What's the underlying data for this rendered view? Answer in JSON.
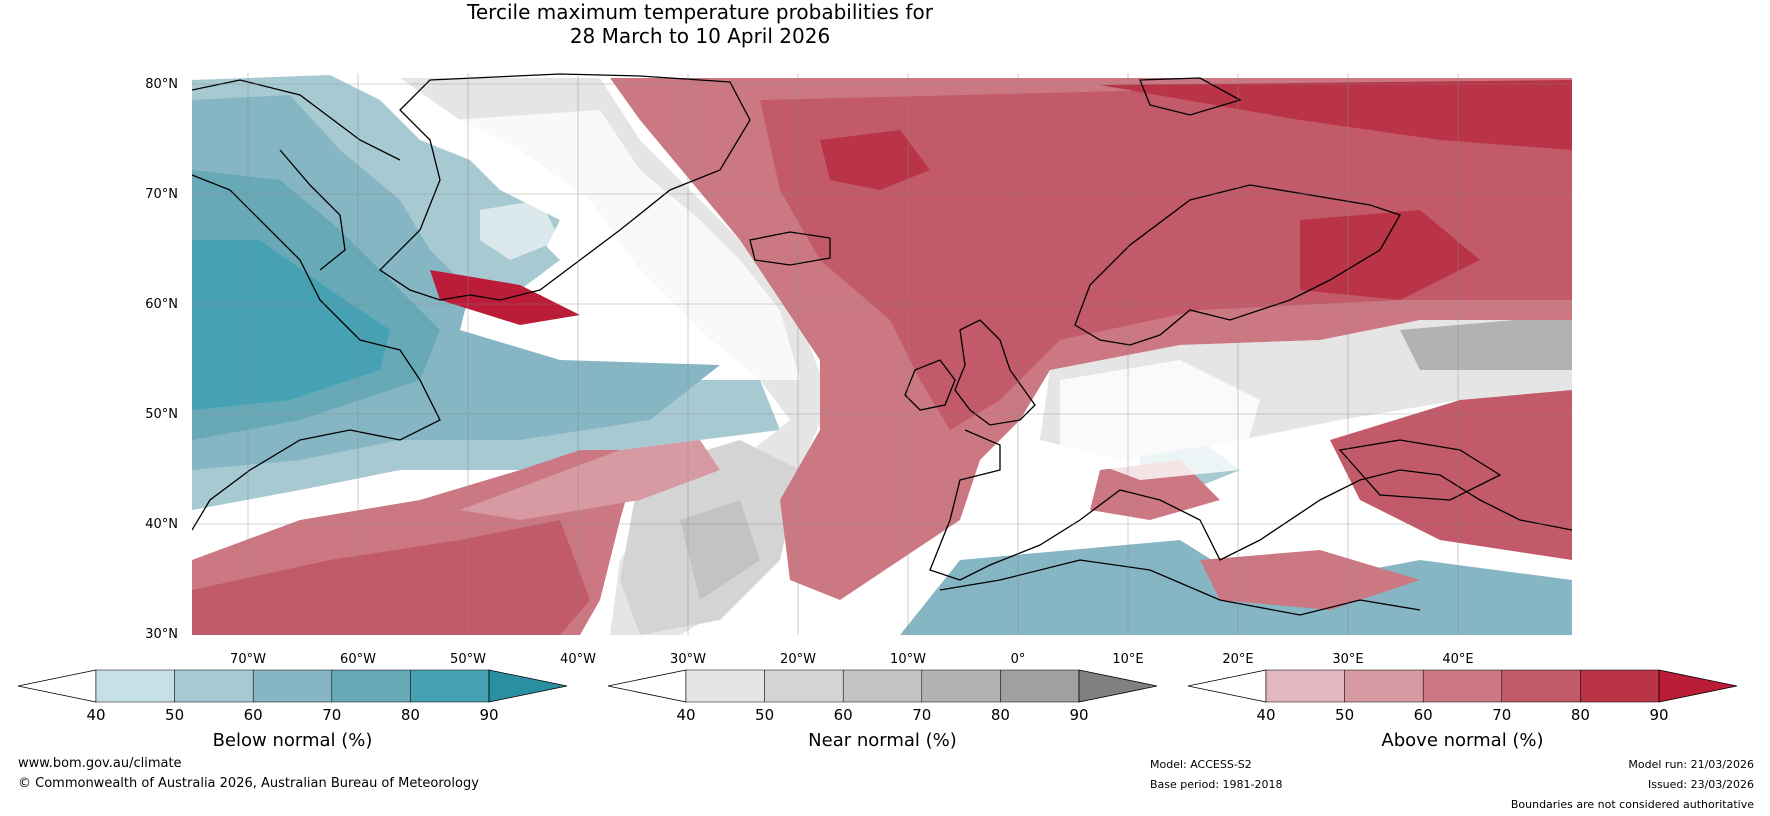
{
  "title": {
    "line1": "Tercile maximum temperature probabilities for",
    "line2": "28 March to 10 April 2026"
  },
  "map": {
    "lat_labels": [
      "80°N",
      "70°N",
      "60°N",
      "50°N",
      "40°N",
      "30°N"
    ],
    "lon_labels": [
      "70°W",
      "60°W",
      "50°W",
      "40°W",
      "30°W",
      "20°W",
      "10°W",
      "0°",
      "10°E",
      "20°E",
      "30°E",
      "40°E"
    ],
    "lat_range": [
      30,
      80
    ],
    "lon_range": [
      -75,
      50
    ]
  },
  "legends": [
    {
      "name": "below",
      "label": "Below normal (%)",
      "ticks": [
        "40",
        "50",
        "60",
        "70",
        "80",
        "90"
      ],
      "colors": [
        "#ffffff",
        "#c7e0e7",
        "#a6c9d2",
        "#86b5c3",
        "#67a9b7",
        "#46a1b3",
        "#2b8fa2"
      ]
    },
    {
      "name": "near",
      "label": "Near normal (%)",
      "ticks": [
        "40",
        "50",
        "60",
        "70",
        "80",
        "90"
      ],
      "colors": [
        "#ffffff",
        "#e5e5e5",
        "#d4d4d4",
        "#c3c3c3",
        "#b2b2b2",
        "#a0a0a0",
        "#808080"
      ]
    },
    {
      "name": "above",
      "label": "Above normal (%)",
      "ticks": [
        "40",
        "50",
        "60",
        "70",
        "80",
        "90"
      ],
      "colors": [
        "#ffffff",
        "#e2b8c0",
        "#d79aa3",
        "#cc7883",
        "#c35a69",
        "#b93446",
        "#bb1c38"
      ]
    }
  ],
  "footer": {
    "website": "www.bom.gov.au/climate",
    "copyright": "© Commonwealth of Australia 2026, Australian Bureau of Meteorology",
    "model": "Model: ACCESS-S2",
    "base_period": "Base period: 1981-2018",
    "model_run": "Model run: 21/03/2026",
    "issued": "Issued: 23/03/2026",
    "disclaimer": "Boundaries are not considered authoritative"
  }
}
